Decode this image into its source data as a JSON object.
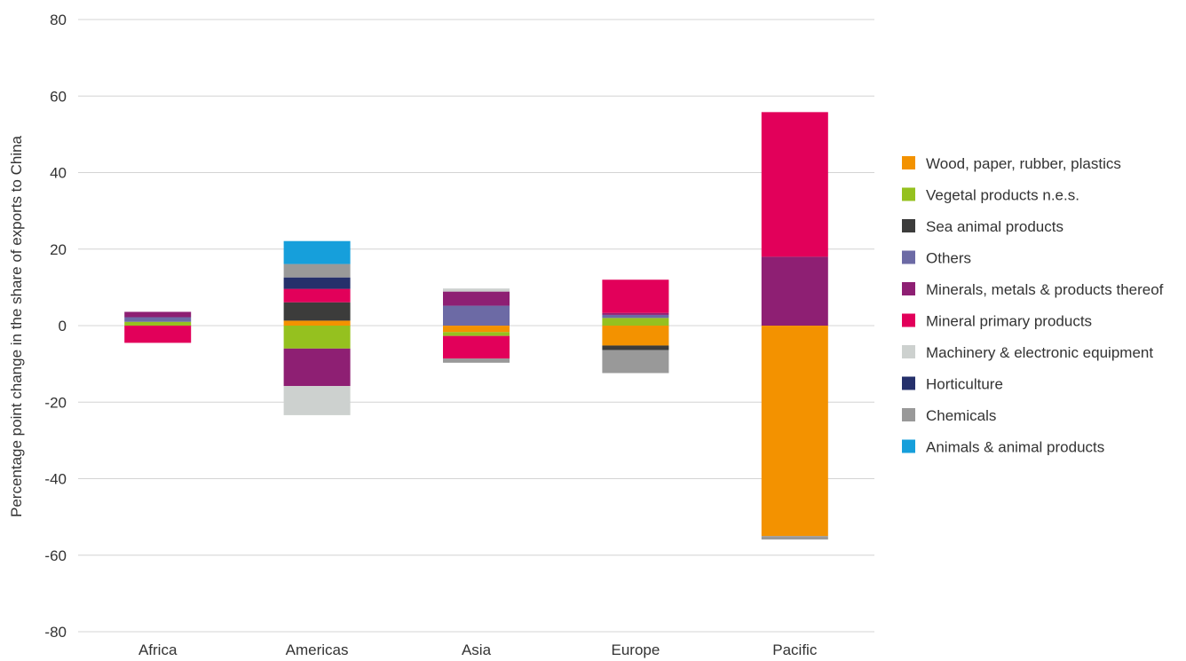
{
  "chart_data": {
    "type": "bar",
    "stacked": true,
    "ylabel": "Percentage point change in the share of exports to China",
    "xlabel": "",
    "ylim": [
      -80,
      80
    ],
    "yticks": [
      80,
      60,
      40,
      20,
      0,
      -20,
      -40,
      -60,
      -80
    ],
    "ytick_labels": [
      "80",
      "60",
      "40",
      "20",
      "0",
      "-20",
      "-40",
      "-60",
      "-80"
    ],
    "grid": true,
    "legend_position": "right",
    "categories": [
      "Africa",
      "Americas",
      "Asia",
      "Europe",
      "Pacific"
    ],
    "series": [
      {
        "name": "Wood, paper, rubber, plastics",
        "color": "#F39200",
        "values": [
          0,
          1.3,
          -1.7,
          -5.2,
          -55.0
        ]
      },
      {
        "name": "Vegetal products n.e.s.",
        "color": "#95C11F",
        "values": [
          1.0,
          -6.0,
          -1.0,
          2.0,
          0
        ]
      },
      {
        "name": "Sea animal products",
        "color": "#3C3C3B",
        "values": [
          0,
          4.8,
          0,
          -1.2,
          0
        ]
      },
      {
        "name": "Others",
        "color": "#6C6AA5",
        "values": [
          1.2,
          0,
          5.2,
          0.8,
          0
        ]
      },
      {
        "name": "Minerals, metals & products thereof",
        "color": "#8E1F73",
        "values": [
          1.4,
          -9.8,
          3.7,
          0.5,
          18.0
        ]
      },
      {
        "name": "Mineral primary products",
        "color": "#E2005A",
        "values": [
          -4.5,
          3.5,
          -5.9,
          8.7,
          37.8
        ]
      },
      {
        "name": "Machinery & electronic equipment",
        "color": "#CDD1CF",
        "values": [
          0,
          -7.6,
          0.8,
          0,
          0
        ]
      },
      {
        "name": "Horticulture",
        "color": "#25306B",
        "values": [
          0,
          3.0,
          0,
          0,
          0
        ]
      },
      {
        "name": "Chemicals",
        "color": "#999999",
        "values": [
          0,
          3.5,
          -1.1,
          -6.0,
          -0.9
        ]
      },
      {
        "name": "Animals & animal products",
        "color": "#169FDB",
        "values": [
          0,
          6.0,
          0,
          0,
          0
        ]
      }
    ]
  }
}
